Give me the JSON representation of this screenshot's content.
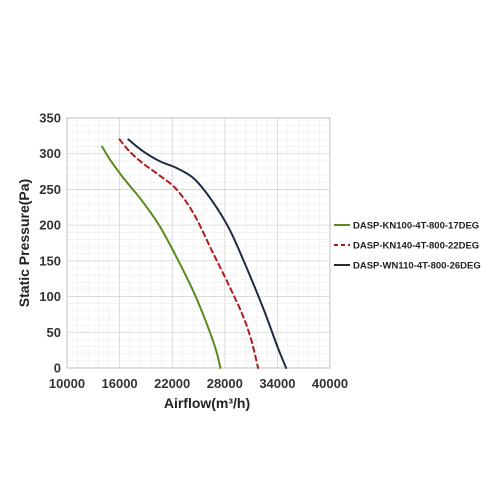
{
  "chart_data": {
    "type": "line",
    "title": "",
    "xlabel": "Airflow(m³/h)",
    "ylabel": "Static Pressure(Pa)",
    "xlim": [
      10000,
      40000
    ],
    "ylim": [
      0,
      350
    ],
    "x_ticks": [
      "10000",
      "16000",
      "22000",
      "28000",
      "34000",
      "40000"
    ],
    "y_ticks": [
      "0",
      "50",
      "100",
      "150",
      "200",
      "250",
      "300",
      "350"
    ],
    "grid": true,
    "legend_position": "right",
    "series": [
      {
        "name": "DASP-KN100-4T-800-17DEG",
        "color": "#5a8a1e",
        "style": "solid",
        "points": [
          [
            14000,
            310
          ],
          [
            15000,
            290
          ],
          [
            16500,
            265
          ],
          [
            18500,
            235
          ],
          [
            20500,
            200
          ],
          [
            22500,
            155
          ],
          [
            24500,
            105
          ],
          [
            26000,
            60
          ],
          [
            27000,
            25
          ],
          [
            27500,
            0
          ]
        ]
      },
      {
        "name": "DASP-KN140-4T-800-22DEG",
        "color": "#b01c1c",
        "style": "dashed",
        "points": [
          [
            16000,
            320
          ],
          [
            17000,
            305
          ],
          [
            18500,
            288
          ],
          [
            20500,
            270
          ],
          [
            22500,
            250
          ],
          [
            24500,
            215
          ],
          [
            26500,
            165
          ],
          [
            28500,
            115
          ],
          [
            30000,
            75
          ],
          [
            31000,
            40
          ],
          [
            31800,
            0
          ]
        ]
      },
      {
        "name": "DASP-WN110-4T-800-26DEG",
        "color": "#1f2b45",
        "style": "solid",
        "points": [
          [
            17000,
            320
          ],
          [
            18500,
            305
          ],
          [
            20500,
            290
          ],
          [
            22500,
            280
          ],
          [
            24500,
            265
          ],
          [
            26500,
            235
          ],
          [
            28500,
            195
          ],
          [
            30500,
            140
          ],
          [
            32500,
            80
          ],
          [
            34000,
            30
          ],
          [
            35000,
            0
          ]
        ]
      }
    ]
  }
}
